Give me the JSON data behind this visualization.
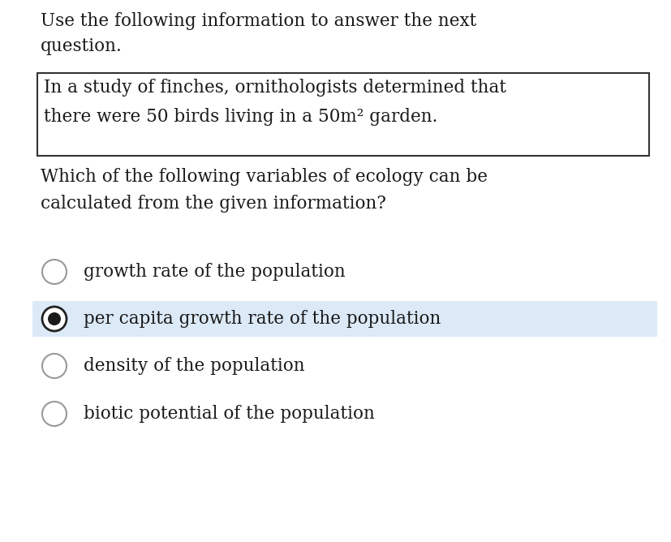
{
  "background_color": "#ffffff",
  "header_text_line1": "Use the following information to answer the next",
  "header_text_line2": "question.",
  "box_text_line1": "In a study of finches, ornithologists determined that",
  "box_text_line2": "there were 50 birds living in a 50m² garden.",
  "question_text_line1": "Which of the following variables of ecology can be",
  "question_text_line2": "calculated from the given information?",
  "options": [
    "growth rate of the population",
    "per capita growth rate of the population",
    "density of the population",
    "biotic potential of the population"
  ],
  "selected_index": 1,
  "selected_bg_color": "#dce9f7",
  "font_size": 15.5,
  "text_color": "#1a1a1a",
  "box_border_color": "#333333",
  "radio_unselected_edge": "#999999",
  "radio_selected_edge": "#222222",
  "radio_selected_fill": "#1a1a1a"
}
